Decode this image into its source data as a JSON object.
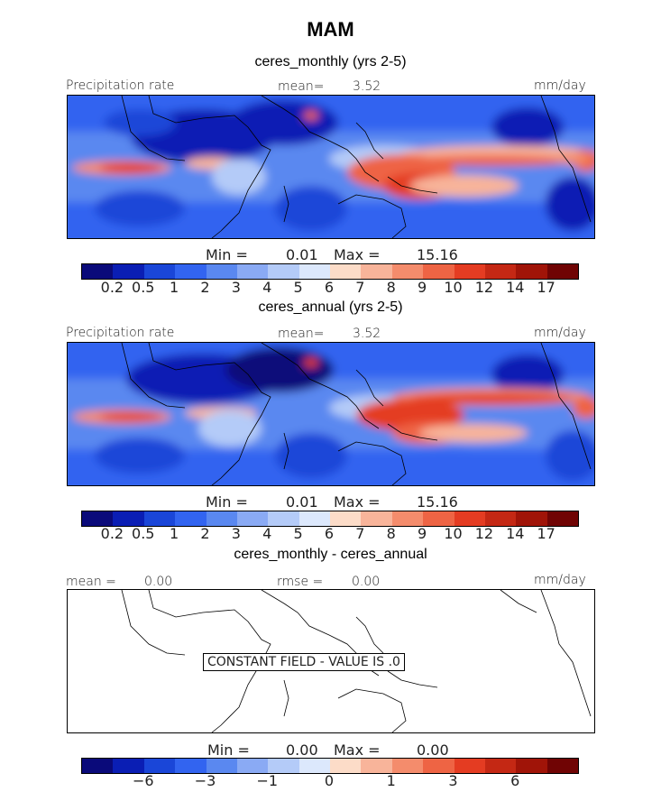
{
  "figure": {
    "title": "MAM"
  },
  "colors": {
    "palette": [
      "#0a0a7a",
      "#0a1eb4",
      "#1a46d8",
      "#3264f0",
      "#5a88f0",
      "#8aaaf4",
      "#b4cbf8",
      "#dce8fc",
      "#fcdcc8",
      "#f8b49a",
      "#f48c6c",
      "#ee6444",
      "#e43c22",
      "#c42814",
      "#a01408",
      "#700404"
    ],
    "land": "#000000"
  },
  "panels": [
    {
      "subtitle": "ceres_monthly (yrs 2-5)",
      "left_label": "Precipitation rate",
      "mean_label": "mean=",
      "mean_value": "3.52",
      "units": "mm/day",
      "min_label": "Min =",
      "min_value": "0.01",
      "max_label": "Max =",
      "max_value": "15.16"
    },
    {
      "subtitle": "ceres_annual (yrs 2-5)",
      "left_label": "Precipitation rate",
      "mean_label": "mean=",
      "mean_value": "3.52",
      "units": "mm/day",
      "min_label": "Min =",
      "min_value": "0.01",
      "max_label": "Max =",
      "max_value": "15.16"
    },
    {
      "subtitle": "ceres_monthly - ceres_annual",
      "left_label": "mean =",
      "left_value": "0.00",
      "rmse_label": "rmse =",
      "rmse_value": "0.00",
      "units": "mm/day",
      "constant_text": "CONSTANT FIELD - VALUE IS .0",
      "min_label": "Min =",
      "min_value": "0.00",
      "max_label": "Max =",
      "max_value": "0.00"
    }
  ],
  "chart_data": [
    {
      "type": "heatmap",
      "title": "ceres_monthly (yrs 2-5)",
      "variable": "Precipitation rate",
      "units": "mm/day",
      "mean": 3.52,
      "min": 0.01,
      "max": 15.16,
      "colorbar_ticks": [
        "0.2",
        "0.5",
        "1",
        "2",
        "3",
        "4",
        "5",
        "6",
        "7",
        "8",
        "9",
        "10",
        "12",
        "14",
        "17"
      ]
    },
    {
      "type": "heatmap",
      "title": "ceres_annual (yrs 2-5)",
      "variable": "Precipitation rate",
      "units": "mm/day",
      "mean": 3.52,
      "min": 0.01,
      "max": 15.16,
      "colorbar_ticks": [
        "0.2",
        "0.5",
        "1",
        "2",
        "3",
        "4",
        "5",
        "6",
        "7",
        "8",
        "9",
        "10",
        "12",
        "14",
        "17"
      ]
    },
    {
      "type": "heatmap",
      "title": "ceres_monthly - ceres_annual",
      "units": "mm/day",
      "mean": 0.0,
      "rmse": 0.0,
      "min": 0.0,
      "max": 0.0,
      "colorbar_ticks": [
        "−6",
        "−3",
        "−1",
        "0",
        "1",
        "3",
        "6"
      ]
    }
  ]
}
